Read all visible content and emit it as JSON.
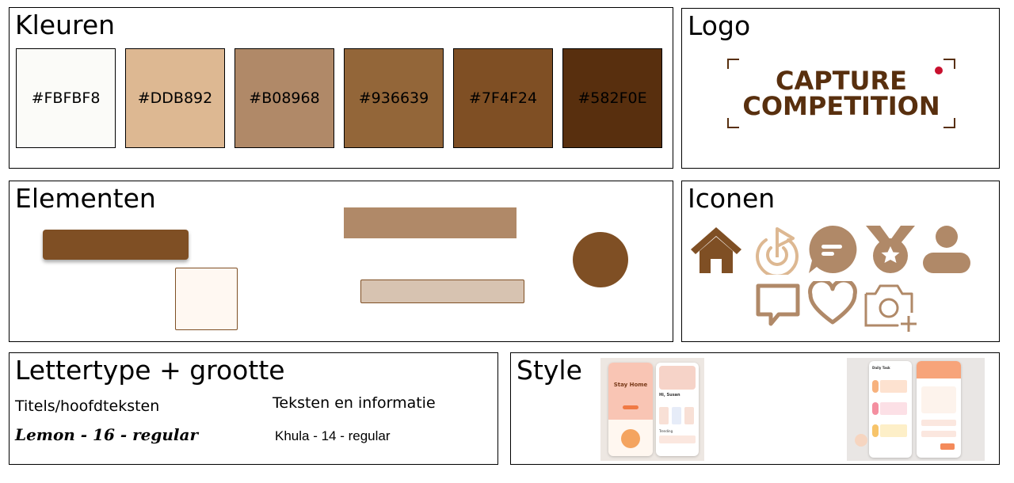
{
  "colors": {
    "title": "Kleuren",
    "swatches": [
      {
        "label": "#FBFBF8",
        "hex": "#FBFBF8"
      },
      {
        "label": "#DDB892",
        "hex": "#DDB892"
      },
      {
        "label": "#B08968",
        "hex": "#B08968"
      },
      {
        "label": "#936639",
        "hex": "#936639"
      },
      {
        "label": "#7F4F24",
        "hex": "#7F4F24"
      },
      {
        "label": "#582F0E",
        "hex": "#582F0E"
      }
    ]
  },
  "logo": {
    "title": "Logo",
    "line1": "CAPTURE",
    "line2": "COMPETITION",
    "color": "#582F0E",
    "dot_color": "#C8102E"
  },
  "elements": {
    "title": "Elementen"
  },
  "icons": {
    "title": "Iconen",
    "color": "#B08968",
    "items": [
      "home-icon",
      "play-target-icon",
      "chat-bubble-icon",
      "medal-icon",
      "user-icon",
      "comment-icon",
      "heart-icon",
      "camera-add-icon"
    ]
  },
  "fonts": {
    "title": "Lettertype + grootte",
    "heading_label": "Titels/hoofdteksten",
    "heading_spec": "Lemon - 16 - regular",
    "body_label": "Teksten en informatie",
    "body_spec": "Khula - 14 - regular"
  },
  "style": {
    "title": "Style",
    "mock1": {
      "heading": "Stay Home",
      "greeting": "Hi, Susan",
      "section": "Trending"
    },
    "mock2": {
      "heading": "Daily Task"
    }
  }
}
